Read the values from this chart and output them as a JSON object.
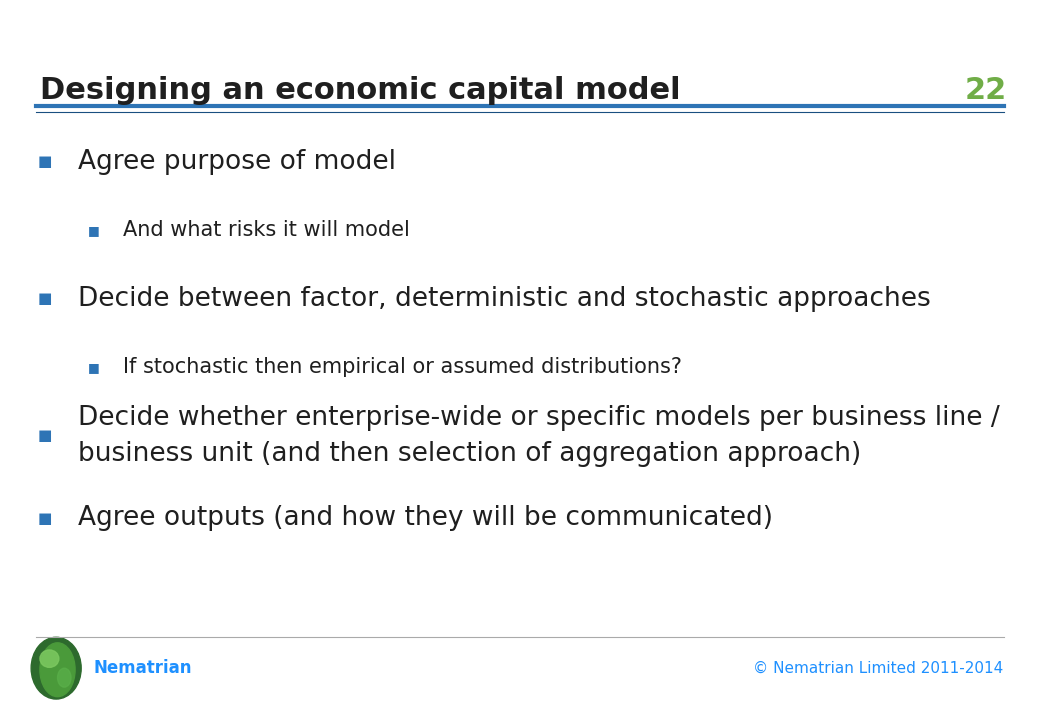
{
  "title": "Designing an economic capital model",
  "slide_number": "22",
  "title_color": "#1F1F1F",
  "title_fontsize": 22,
  "slide_number_color": "#70AD47",
  "background_color": "#FFFFFF",
  "header_line_color1": "#2E74B5",
  "header_line_color2": "#1a4f80",
  "bullet_color": "#2E74B5",
  "sub_bullet_color": "#2E74B5",
  "text_color": "#1F1F1F",
  "footer_text_color": "#1E90FF",
  "footer_brand": "Nematrian",
  "footer_copy": "© Nematrian Limited 2011-2014",
  "bullets": [
    {
      "level": 1,
      "text": "Agree purpose of model"
    },
    {
      "level": 2,
      "text": "And what risks it will model"
    },
    {
      "level": 1,
      "text": "Decide between factor, deterministic and stochastic approaches"
    },
    {
      "level": 2,
      "text": "If stochastic then empirical or assumed distributions?"
    },
    {
      "level": 1,
      "text": "Decide whether enterprise-wide or specific models per business line /\nbusiness unit (and then selection of aggregation approach)"
    },
    {
      "level": 1,
      "text": "Agree outputs (and how they will be communicated)"
    }
  ],
  "l1_fontsize": 19,
  "l2_fontsize": 15,
  "l1_bullet_size": 11,
  "l2_bullet_size": 9
}
